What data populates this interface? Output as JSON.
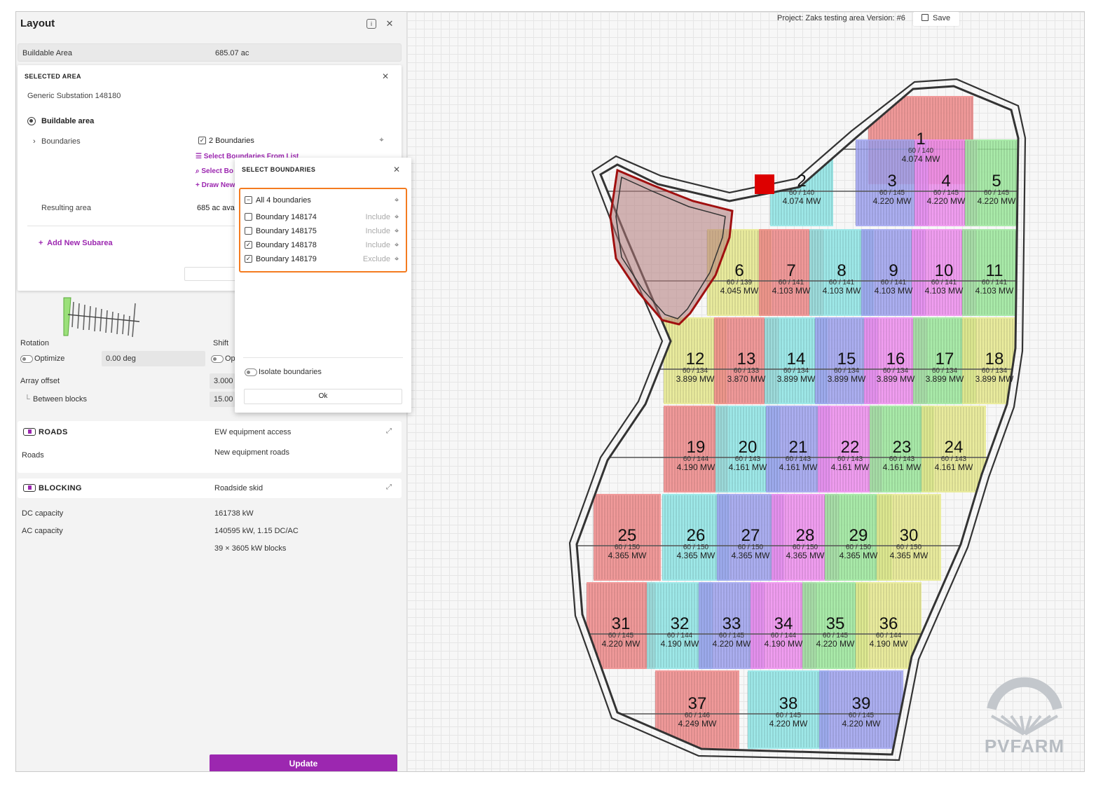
{
  "panel": {
    "title": "Layout",
    "info_icon": "info-icon",
    "close_icon": "close-icon"
  },
  "buildable": {
    "label": "Buildable Area",
    "value": "685.07 ac"
  },
  "selected_area": {
    "title": "SELECTED AREA",
    "substation": "Generic Substation 148180",
    "mode_label": "Buildable area",
    "boundaries_label": "Boundaries",
    "boundaries_count": "2 Boundaries",
    "link_select_from_list": "Select Boundaries From List",
    "link_select_on_map": "Select Bo",
    "link_draw_new": "Draw New",
    "resulting_label": "Resulting area",
    "resulting_value": "685 ac avai",
    "add_subarea": "Add New Subarea"
  },
  "select_boundaries": {
    "title": "SELECT BOUNDARIES",
    "all_label": "All 4 boundaries",
    "items": [
      {
        "name": "Boundary 148174",
        "action": "Include",
        "checked": false
      },
      {
        "name": "Boundary 148175",
        "action": "Include",
        "checked": false
      },
      {
        "name": "Boundary 148178",
        "action": "Include",
        "checked": true
      },
      {
        "name": "Boundary 148179",
        "action": "Exclude",
        "checked": true
      }
    ],
    "isolate_label": "Isolate boundaries",
    "ok_label": "Ok"
  },
  "array": {
    "rotation_label": "Rotation",
    "shift_label": "Shift",
    "optimize_label": "Optimize",
    "rotation_value": "0.00 deg",
    "shift_optimize_label": "Op",
    "array_offset_label": "Array offset",
    "array_offset_value": "3.000",
    "between_blocks_label": "Between blocks",
    "between_blocks_value": "15.00"
  },
  "roads": {
    "title": "ROADS",
    "type": "EW equipment access",
    "roads_label": "Roads",
    "roads_value": "New equipment roads"
  },
  "blocking": {
    "title": "BLOCKING",
    "type": "Roadside skid",
    "dc_label": "DC capacity",
    "dc_value": "161738 kW",
    "ac_label": "AC capacity",
    "ac_value": "140595 kW, 1.15 DC/AC",
    "blocks_value": "39 × 3605 kW blocks"
  },
  "update_label": "Update",
  "map": {
    "project_info": "Project: Zaks testing area Version: #6",
    "save_label": "Save",
    "logo_text": "PVFARM",
    "blocks": [
      {
        "num": "1",
        "ratio": "60 / 140",
        "mw": "4.074 MW"
      },
      {
        "num": "2",
        "ratio": "60 / 140",
        "mw": "4.074 MW"
      },
      {
        "num": "3",
        "ratio": "60 / 145",
        "mw": "4.220 MW"
      },
      {
        "num": "4",
        "ratio": "60 / 145",
        "mw": "4.220 MW"
      },
      {
        "num": "5",
        "ratio": "60 / 145",
        "mw": "4.220 MW"
      },
      {
        "num": "6",
        "ratio": "60 / 139",
        "mw": "4.045 MW"
      },
      {
        "num": "7",
        "ratio": "60 / 141",
        "mw": "4.103 MW"
      },
      {
        "num": "8",
        "ratio": "60 / 141",
        "mw": "4.103 MW"
      },
      {
        "num": "9",
        "ratio": "60 / 141",
        "mw": "4.103 MW"
      },
      {
        "num": "10",
        "ratio": "60 / 141",
        "mw": "4.103 MW"
      },
      {
        "num": "11",
        "ratio": "60 / 141",
        "mw": "4.103 MW"
      },
      {
        "num": "12",
        "ratio": "60 / 134",
        "mw": "3.899 MW"
      },
      {
        "num": "13",
        "ratio": "60 / 133",
        "mw": "3.870 MW"
      },
      {
        "num": "14",
        "ratio": "60 / 134",
        "mw": "3.899 MW"
      },
      {
        "num": "15",
        "ratio": "60 / 134",
        "mw": "3.899 MW"
      },
      {
        "num": "16",
        "ratio": "60 / 134",
        "mw": "3.899 MW"
      },
      {
        "num": "17",
        "ratio": "60 / 134",
        "mw": "3.899 MW"
      },
      {
        "num": "18",
        "ratio": "60 / 134",
        "mw": "3.899 MW"
      },
      {
        "num": "19",
        "ratio": "60 / 144",
        "mw": "4.190 MW"
      },
      {
        "num": "20",
        "ratio": "60 / 143",
        "mw": "4.161 MW"
      },
      {
        "num": "21",
        "ratio": "60 / 143",
        "mw": "4.161 MW"
      },
      {
        "num": "22",
        "ratio": "60 / 143",
        "mw": "4.161 MW"
      },
      {
        "num": "23",
        "ratio": "60 / 143",
        "mw": "4.161 MW"
      },
      {
        "num": "24",
        "ratio": "60 / 143",
        "mw": "4.161 MW"
      },
      {
        "num": "25",
        "ratio": "60 / 150",
        "mw": "4.365 MW"
      },
      {
        "num": "26",
        "ratio": "60 / 150",
        "mw": "4.365 MW"
      },
      {
        "num": "27",
        "ratio": "60 / 150",
        "mw": "4.365 MW"
      },
      {
        "num": "28",
        "ratio": "60 / 150",
        "mw": "4.365 MW"
      },
      {
        "num": "29",
        "ratio": "60 / 150",
        "mw": "4.365 MW"
      },
      {
        "num": "30",
        "ratio": "60 / 150",
        "mw": "4.365 MW"
      },
      {
        "num": "31",
        "ratio": "60 / 145",
        "mw": "4.220 MW"
      },
      {
        "num": "32",
        "ratio": "60 / 144",
        "mw": "4.190 MW"
      },
      {
        "num": "33",
        "ratio": "60 / 145",
        "mw": "4.220 MW"
      },
      {
        "num": "34",
        "ratio": "60 / 144",
        "mw": "4.190 MW"
      },
      {
        "num": "35",
        "ratio": "60 / 145",
        "mw": "4.220 MW"
      },
      {
        "num": "36",
        "ratio": "60 / 144",
        "mw": "4.190 MW"
      },
      {
        "num": "37",
        "ratio": "60 / 146",
        "mw": "4.249 MW"
      },
      {
        "num": "38",
        "ratio": "60 / 145",
        "mw": "4.220 MW"
      },
      {
        "num": "39",
        "ratio": "60 / 145",
        "mw": "4.220 MW"
      }
    ]
  },
  "colors": {
    "accent": "#9c27b0",
    "highlight": "#f47b20",
    "substation": "#dd0000",
    "exclusion": "#b07878"
  }
}
